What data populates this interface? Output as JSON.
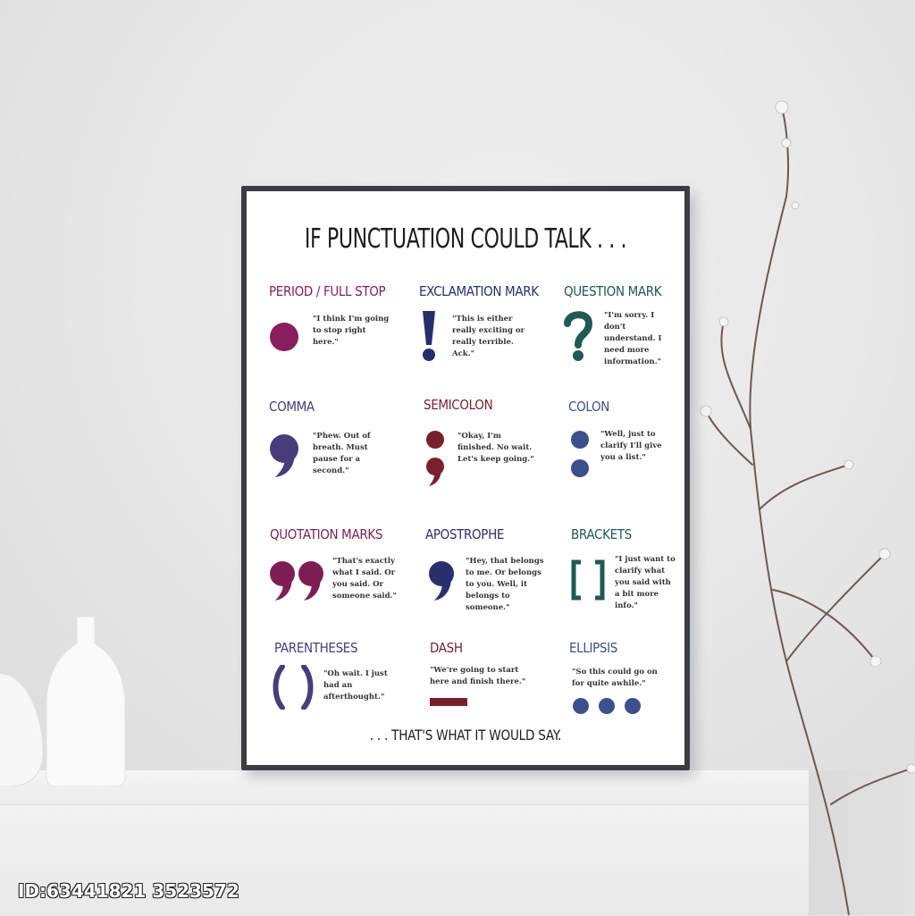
{
  "poster": {
    "title": "IF PUNCTUATION COULD TALK . . .",
    "footer": ". . . THAT'S WHAT IT WOULD SAY.",
    "cells": [
      {
        "name": "PERIOD / FULL STOP",
        "color": "#8a1e5e",
        "quote": "\"I think I'm going to stop right here.\""
      },
      {
        "name": "EXCLAMATION MARK",
        "color": "#25306b",
        "quote": "\"This is either really exciting or really terrible. Ack.\""
      },
      {
        "name": "QUESTION MARK",
        "color": "#1f5a55",
        "quote": "\"I'm sorry. I don't understand. I need more information.\""
      },
      {
        "name": "COMMA",
        "color": "#4a3c7a",
        "quote": "\"Phew. Out of breath. Must pause for a second.\""
      },
      {
        "name": "SEMICOLON",
        "color": "#7a1f2e",
        "quote": "\"Okay, I'm finished. No wait. Let's keep going.\""
      },
      {
        "name": "COLON",
        "color": "#3e4f8e",
        "quote": "\"Well, just to clarify I'll give you a list.\""
      },
      {
        "name": "QUOTATION MARKS",
        "color": "#7d1f55",
        "quote": "\"That's exactly what I said. Or you said. Or someone said.\""
      },
      {
        "name": "APOSTROPHE",
        "color": "#2a2f6e",
        "quote": "\"Hey, that belongs to me. Or belongs to you. Well, it belongs to someone.\""
      },
      {
        "name": "BRACKETS",
        "color": "#1f5a55",
        "quote": "\"I just want to clarify what you said with a bit more info.\""
      },
      {
        "name": "PARENTHESES",
        "color": "#4a3c7a",
        "quote": "\"Oh wait. I just had an afterthought.\""
      },
      {
        "name": "DASH",
        "color": "#7a1f2e",
        "quote": "\"We're going to start here and finish there.\""
      },
      {
        "name": "ELLIPSIS",
        "color": "#3e4f8e",
        "quote": "\"So this could go on for quite awhile.\""
      }
    ]
  },
  "watermark": "ID:63441821 3523572"
}
